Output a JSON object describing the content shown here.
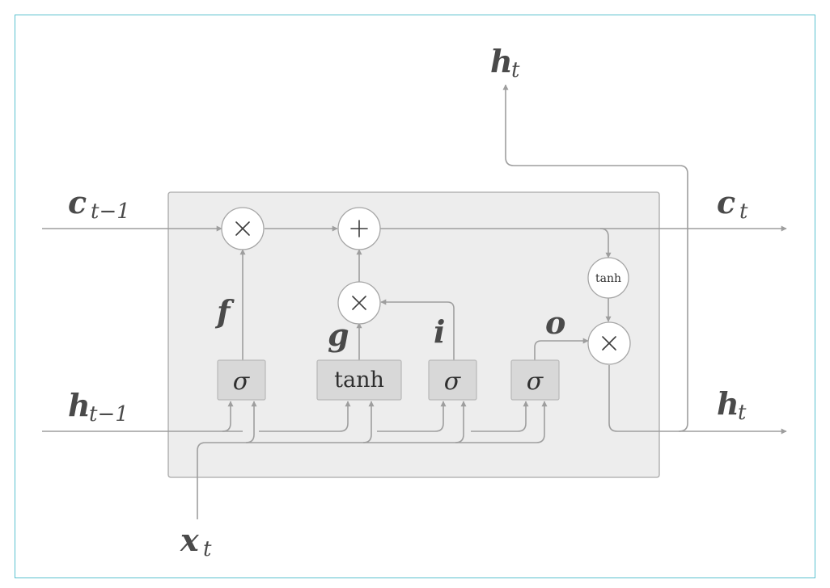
{
  "diagram": {
    "labels": {
      "c_prev": {
        "main": "c",
        "sub": "t−1"
      },
      "h_prev": {
        "main": "h",
        "sub": "t−1"
      },
      "x_t": {
        "main": "x",
        "sub": "t"
      },
      "c_t": {
        "main": "c",
        "sub": "t"
      },
      "h_t_right": {
        "main": "h",
        "sub": "t"
      },
      "h_t_top": {
        "main": "h",
        "sub": "t"
      }
    },
    "gate_labels": {
      "forget": "f",
      "candidate": "g",
      "input": "i",
      "output": "o"
    },
    "gates": {
      "forget_sigma": "σ",
      "candidate_tanh": "tanh",
      "input_sigma": "σ",
      "output_sigma": "σ"
    },
    "ops": {
      "forget_mult": "×",
      "cell_add": "+",
      "input_mult": "×",
      "output_mult": "×",
      "cell_tanh": "tanh"
    },
    "colors": {
      "frame_border": "#5bc1cf",
      "cell_fill": "#ededed",
      "gate_fill": "#d8d8d8",
      "wire": "#9e9e9e",
      "label_text": "#4a4a4a"
    }
  }
}
